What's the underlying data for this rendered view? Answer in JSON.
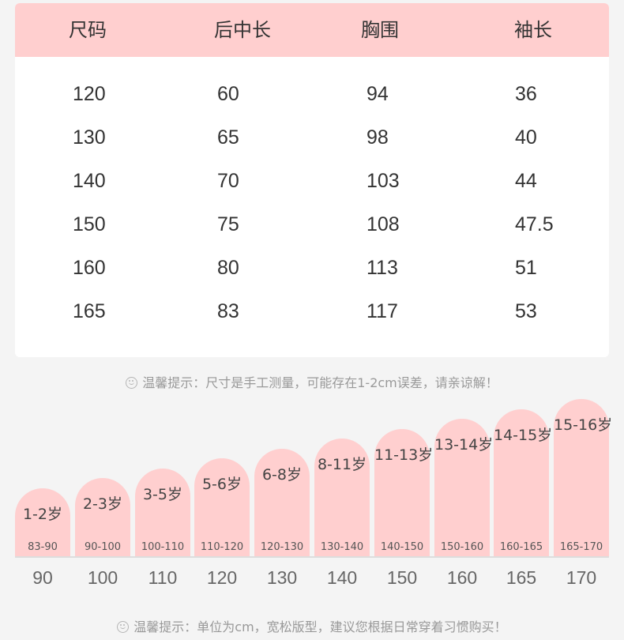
{
  "size_table": {
    "headers": [
      "尺码",
      "后中长",
      "胸围",
      "袖长"
    ],
    "rows": [
      [
        "120",
        "60",
        "94",
        "36"
      ],
      [
        "130",
        "65",
        "98",
        "40"
      ],
      [
        "140",
        "70",
        "103",
        "44"
      ],
      [
        "150",
        "75",
        "108",
        "47.5"
      ],
      [
        "160",
        "80",
        "113",
        "51"
      ],
      [
        "165",
        "83",
        "117",
        "53"
      ]
    ]
  },
  "tip1": "温馨提示：尺寸是手工测量，可能存在1-2cm误差，请亲谅解！",
  "age_chart": {
    "items": [
      {
        "age": "1-2岁",
        "range": "83-90",
        "height": "90"
      },
      {
        "age": "2-3岁",
        "range": "90-100",
        "height": "100"
      },
      {
        "age": "3-5岁",
        "range": "100-110",
        "height": "110"
      },
      {
        "age": "5-6岁",
        "range": "110-120",
        "height": "120"
      },
      {
        "age": "6-8岁",
        "range": "120-130",
        "height": "130"
      },
      {
        "age": "8-11岁",
        "range": "130-140",
        "height": "140"
      },
      {
        "age": "11-13岁",
        "range": "140-150",
        "height": "150"
      },
      {
        "age": "13-14岁",
        "range": "150-160",
        "height": "160"
      },
      {
        "age": "14-15岁",
        "range": "160-165",
        "height": "165"
      },
      {
        "age": "15-16岁",
        "range": "165-170",
        "height": "170"
      }
    ]
  },
  "tip2": "温馨提示：单位为cm，宽松版型，建议您根据日常穿着习惯购买！",
  "colors": {
    "accent": "#ffcfcf",
    "background": "#f4f4f4",
    "card": "#ffffff"
  },
  "icons": [
    "smile-icon"
  ]
}
